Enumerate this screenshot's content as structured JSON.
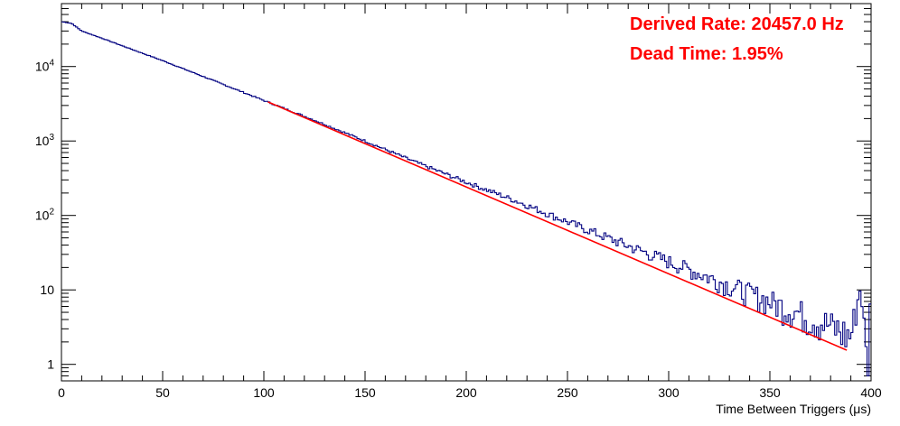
{
  "chart_data": {
    "type": "line",
    "title": "",
    "xlabel": "Time Between Triggers (μs)",
    "ylabel": "",
    "xlim": [
      0,
      400
    ],
    "ylim": [
      0.6,
      70000
    ],
    "yscale": "log",
    "grid": false,
    "legend": "none",
    "x_ticks": [
      {
        "value": 0,
        "label": "0"
      },
      {
        "value": 50,
        "label": "50"
      },
      {
        "value": 100,
        "label": "100"
      },
      {
        "value": 150,
        "label": "150"
      },
      {
        "value": 200,
        "label": "200"
      },
      {
        "value": 250,
        "label": "250"
      },
      {
        "value": 300,
        "label": "300"
      },
      {
        "value": 350,
        "label": "350"
      },
      {
        "value": 400,
        "label": "400"
      }
    ],
    "y_ticks": [
      {
        "value": 1,
        "base": "1",
        "exp": ""
      },
      {
        "value": 10,
        "base": "10",
        "exp": ""
      },
      {
        "value": 100,
        "base": "10",
        "exp": "2"
      },
      {
        "value": 1000,
        "base": "10",
        "exp": "3"
      },
      {
        "value": 10000,
        "base": "10",
        "exp": "4"
      }
    ],
    "series": [
      {
        "color": "#000080",
        "x": [
          0,
          5,
          10,
          20,
          30,
          50,
          75,
          100,
          125,
          150,
          175,
          200,
          225,
          250,
          275,
          300,
          325,
          350,
          375,
          390,
          395,
          398,
          400
        ],
        "y": [
          40000,
          38000,
          30000,
          24000,
          19000,
          12000,
          6500,
          3500,
          1900,
          1000,
          520,
          280,
          155,
          82,
          44,
          24,
          13,
          7,
          3.8,
          2.4,
          12,
          0.8,
          10
        ]
      },
      {
        "color": "#ff0000",
        "x": [
          102,
          388
        ],
        "y": [
          3350,
          1.55
        ]
      }
    ],
    "annotations": [
      {
        "text": "Derived Rate: 20457.0 Hz",
        "color": "#ff0000"
      },
      {
        "text": "Dead Time: 1.95%",
        "color": "#ff0000"
      }
    ]
  }
}
